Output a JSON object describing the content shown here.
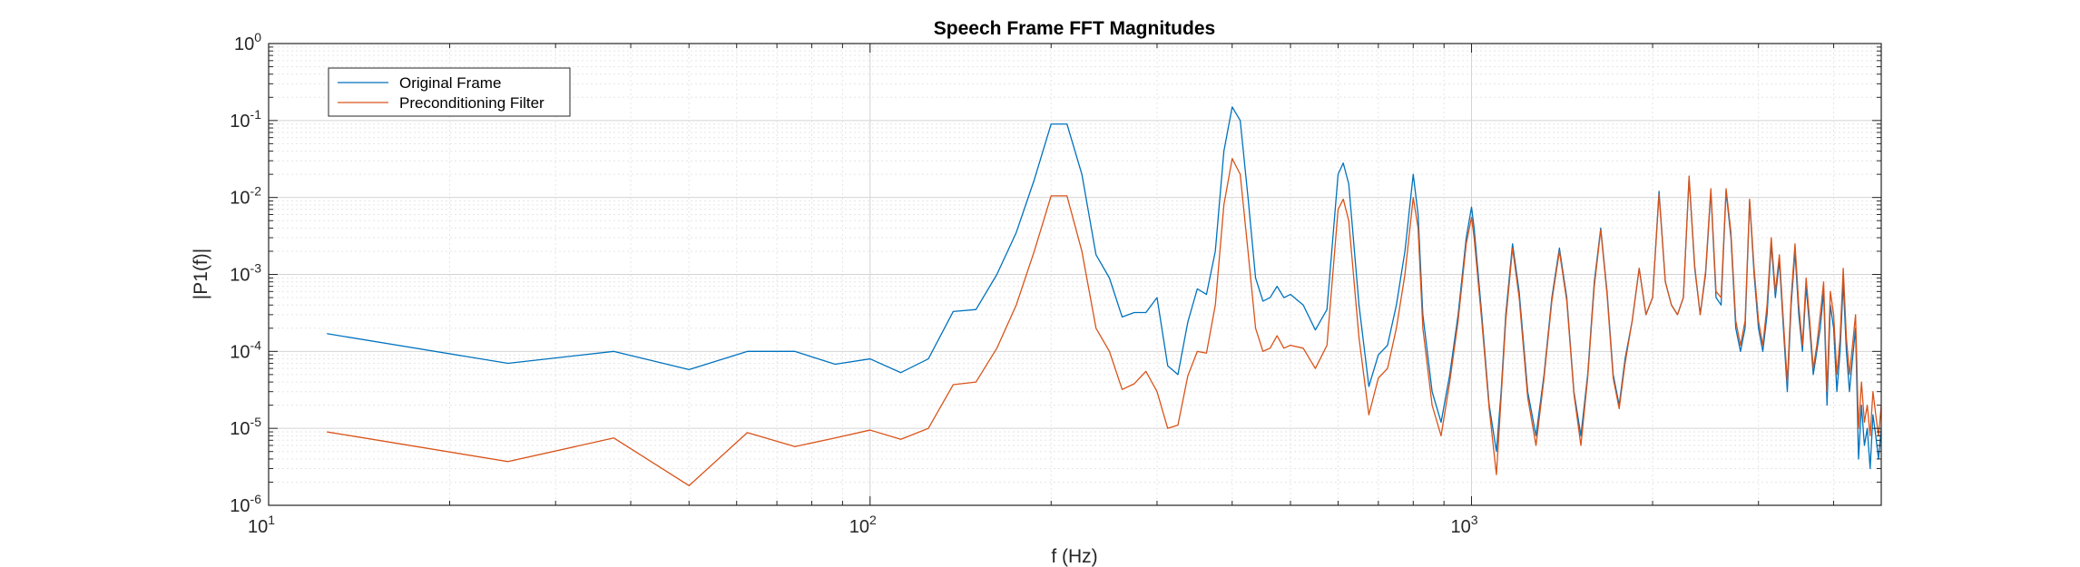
{
  "chart_data": {
    "type": "line",
    "title": "Speech Frame FFT Magnitudes",
    "xlabel": "f (Hz)",
    "ylabel": "|P1(f)|",
    "xscale": "log",
    "yscale": "log",
    "xlim": [
      10,
      4800
    ],
    "ylim": [
      1e-06,
      1
    ],
    "grid": true,
    "minor_grid": true,
    "legend_position": "top-left",
    "xticks": [
      {
        "base": "10",
        "exp": "1",
        "value": 10
      },
      {
        "base": "10",
        "exp": "2",
        "value": 100
      },
      {
        "base": "10",
        "exp": "3",
        "value": 1000
      }
    ],
    "yticks": [
      {
        "base": "10",
        "exp": "-6",
        "value": 1e-06
      },
      {
        "base": "10",
        "exp": "-5",
        "value": 1e-05
      },
      {
        "base": "10",
        "exp": "-4",
        "value": 0.0001
      },
      {
        "base": "10",
        "exp": "-3",
        "value": 0.001
      },
      {
        "base": "10",
        "exp": "-2",
        "value": 0.01
      },
      {
        "base": "10",
        "exp": "-1",
        "value": 0.1
      },
      {
        "base": "10",
        "exp": "0",
        "value": 1
      }
    ],
    "series": [
      {
        "name": "Original Frame",
        "color": "#0072BD",
        "x": [
          12.5,
          25,
          37.5,
          50,
          62.5,
          75,
          87.5,
          100,
          112.5,
          125,
          137.5,
          150,
          162.5,
          175,
          187.5,
          200,
          212.5,
          225,
          237.5,
          250,
          262.5,
          275,
          287.5,
          300,
          312.5,
          325,
          337.5,
          350,
          362.5,
          375,
          387.5,
          400,
          412.5,
          425,
          437.5,
          450,
          462.5,
          475,
          487.5,
          500,
          525,
          550,
          575,
          600,
          612,
          625,
          650,
          675,
          700,
          725,
          750,
          775,
          800,
          815,
          830,
          860,
          890,
          920,
          950,
          980,
          1000,
          1010,
          1040,
          1070,
          1100,
          1120,
          1140,
          1170,
          1200,
          1240,
          1280,
          1320,
          1360,
          1400,
          1440,
          1480,
          1520,
          1560,
          1600,
          1640,
          1680,
          1720,
          1760,
          1800,
          1850,
          1900,
          1950,
          2000,
          2050,
          2100,
          2150,
          2200,
          2250,
          2300,
          2350,
          2400,
          2450,
          2500,
          2550,
          2600,
          2650,
          2700,
          2750,
          2800,
          2850,
          2900,
          2950,
          3000,
          3050,
          3100,
          3150,
          3200,
          3250,
          3300,
          3350,
          3400,
          3450,
          3500,
          3550,
          3600,
          3650,
          3700,
          3750,
          3800,
          3850,
          3900,
          3950,
          4000,
          4050,
          4100,
          4150,
          4200,
          4250,
          4300,
          4350,
          4400,
          4450,
          4500,
          4550,
          4600,
          4650,
          4700,
          4750,
          4800
        ],
        "y": [
          0.00017,
          7e-05,
          0.0001,
          5.8e-05,
          0.0001,
          0.0001,
          6.8e-05,
          8e-05,
          5.3e-05,
          8e-05,
          0.00033,
          0.00035,
          0.001,
          0.0035,
          0.017,
          0.09,
          0.09,
          0.02,
          0.0018,
          0.0009,
          0.00028,
          0.00032,
          0.00032,
          0.0005,
          6.5e-05,
          5e-05,
          0.00024,
          0.00065,
          0.00055,
          0.002,
          0.04,
          0.15,
          0.1,
          0.01,
          0.0009,
          0.00045,
          0.0005,
          0.0007,
          0.0005,
          0.00055,
          0.0004,
          0.00019,
          0.00035,
          0.02,
          0.028,
          0.015,
          0.0004,
          3.5e-05,
          9e-05,
          0.00012,
          0.0004,
          0.002,
          0.02,
          0.006,
          0.0003,
          3e-05,
          1.2e-05,
          5e-05,
          0.0003,
          0.003,
          0.0075,
          0.004,
          0.0003,
          2e-05,
          5e-06,
          3e-05,
          0.0003,
          0.0025,
          0.0006,
          3e-05,
          8e-06,
          5e-05,
          0.0005,
          0.0022,
          0.0005,
          3e-05,
          8e-06,
          5e-05,
          0.0008,
          0.004,
          0.0006,
          5e-05,
          2e-05,
          8e-05,
          0.00025,
          0.0012,
          0.0003,
          0.0005,
          0.012,
          0.0008,
          0.0004,
          0.0003,
          0.0005,
          0.018,
          0.0012,
          0.0003,
          0.001,
          0.012,
          0.0005,
          0.0004,
          0.012,
          0.003,
          0.0002,
          0.0001,
          0.0002,
          0.009,
          0.001,
          0.0002,
          0.0001,
          0.0003,
          0.0025,
          0.0005,
          0.0015,
          0.0002,
          3e-05,
          0.0004,
          0.002,
          0.0003,
          0.0001,
          0.0007,
          0.0002,
          5e-05,
          0.0001,
          0.0002,
          0.0006,
          2e-05,
          0.0004,
          0.0002,
          3e-05,
          0.0001,
          0.0008,
          0.0001,
          3e-05,
          8e-05,
          0.0002,
          4e-06,
          2e-05,
          6e-06,
          1e-05,
          3e-06,
          1.5e-05,
          8e-06,
          4e-06,
          1e-05
        ]
      },
      {
        "name": "Preconditioning Filter",
        "color": "#D95319",
        "x": [
          12.5,
          25,
          37.5,
          50,
          62.5,
          75,
          87.5,
          100,
          112.5,
          125,
          137.5,
          150,
          162.5,
          175,
          187.5,
          200,
          212.5,
          225,
          237.5,
          250,
          262.5,
          275,
          287.5,
          300,
          312.5,
          325,
          337.5,
          350,
          362.5,
          375,
          387.5,
          400,
          412.5,
          425,
          437.5,
          450,
          462.5,
          475,
          487.5,
          500,
          525,
          550,
          575,
          600,
          612,
          625,
          650,
          675,
          700,
          725,
          750,
          775,
          800,
          815,
          830,
          860,
          890,
          920,
          950,
          980,
          1000,
          1010,
          1040,
          1070,
          1100,
          1120,
          1140,
          1170,
          1200,
          1240,
          1280,
          1320,
          1360,
          1400,
          1440,
          1480,
          1520,
          1560,
          1600,
          1640,
          1680,
          1720,
          1760,
          1800,
          1850,
          1900,
          1950,
          2000,
          2050,
          2100,
          2150,
          2200,
          2250,
          2300,
          2350,
          2400,
          2450,
          2500,
          2550,
          2600,
          2650,
          2700,
          2750,
          2800,
          2850,
          2900,
          2950,
          3000,
          3050,
          3100,
          3150,
          3200,
          3250,
          3300,
          3350,
          3400,
          3450,
          3500,
          3550,
          3600,
          3650,
          3700,
          3750,
          3800,
          3850,
          3900,
          3950,
          4000,
          4050,
          4100,
          4150,
          4200,
          4250,
          4300,
          4350,
          4400,
          4450,
          4500,
          4550,
          4600,
          4650,
          4700,
          4750,
          4800
        ],
        "y": [
          9e-06,
          3.7e-06,
          7.5e-06,
          1.8e-06,
          8.8e-06,
          5.8e-06,
          7.5e-06,
          9.5e-06,
          7.2e-06,
          1e-05,
          3.7e-05,
          4e-05,
          0.00011,
          0.0004,
          0.002,
          0.0105,
          0.0105,
          0.002,
          0.0002,
          0.0001,
          3.2e-05,
          3.8e-05,
          5.5e-05,
          3e-05,
          1e-05,
          1.1e-05,
          4.8e-05,
          0.0001,
          9.5e-05,
          0.0004,
          0.008,
          0.032,
          0.02,
          0.002,
          0.0002,
          0.0001,
          0.00011,
          0.00016,
          0.00011,
          0.00012,
          0.00011,
          6e-05,
          0.00012,
          0.007,
          0.0095,
          0.005,
          0.00015,
          1.5e-05,
          4.5e-05,
          6e-05,
          0.0002,
          0.001,
          0.01,
          0.004,
          0.0002,
          2e-05,
          8e-06,
          4e-05,
          0.00025,
          0.0025,
          0.0055,
          0.003,
          0.00025,
          1.8e-05,
          2.5e-06,
          2.5e-05,
          0.00025,
          0.0022,
          0.0005,
          2.5e-05,
          6e-06,
          4.5e-05,
          0.00045,
          0.002,
          0.00045,
          2.8e-05,
          6e-06,
          4.5e-05,
          0.0007,
          0.0038,
          0.00055,
          4.5e-05,
          1.8e-05,
          7e-05,
          0.00025,
          0.0012,
          0.0003,
          0.0005,
          0.011,
          0.0008,
          0.0004,
          0.0003,
          0.0005,
          0.019,
          0.0013,
          0.0003,
          0.0011,
          0.013,
          0.0006,
          0.0005,
          0.013,
          0.0035,
          0.00025,
          0.00012,
          0.00025,
          0.0095,
          0.0012,
          0.00025,
          0.00012,
          0.0004,
          0.003,
          0.0006,
          0.0018,
          0.00025,
          4e-05,
          0.0005,
          0.0025,
          0.0004,
          0.00012,
          0.0009,
          0.00025,
          6e-05,
          0.00012,
          0.0003,
          0.0008,
          3e-05,
          0.0006,
          0.0003,
          5e-05,
          0.00015,
          0.0012,
          0.00015,
          5e-05,
          0.00012,
          0.0003,
          1e-05,
          4e-05,
          1.2e-05,
          2e-05,
          8e-06,
          3e-05,
          1.5e-05,
          8e-06,
          2e-05
        ]
      }
    ]
  }
}
